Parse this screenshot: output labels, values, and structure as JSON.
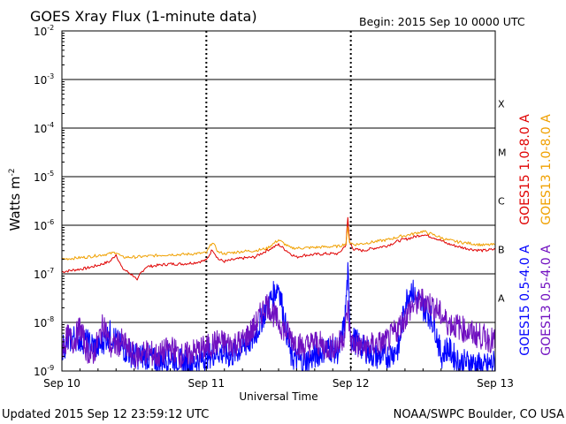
{
  "header": {
    "title": "GOES Xray Flux (1-minute data)",
    "begin": "Begin:  2015 Sep 10 0000 UTC"
  },
  "footer": {
    "updated": "Updated 2015 Sep 12 23:59:12 UTC",
    "credit": "NOAA/SWPC Boulder, CO USA"
  },
  "chart_data": {
    "type": "line",
    "title": "GOES Xray Flux (1-minute data)",
    "xlabel": "Universal Time",
    "ylabel": "Watts m",
    "ylabel_exp": "-2",
    "y_scale": "log",
    "ylim": [
      1e-09,
      0.01
    ],
    "xlim": [
      0,
      72
    ],
    "x_unit": "hours since 2015 Sep 10 0000 UTC",
    "x_ticks": [
      {
        "x": 0,
        "label": "Sep 10"
      },
      {
        "x": 24,
        "label": "Sep 11"
      },
      {
        "x": 48,
        "label": "Sep 12"
      },
      {
        "x": 72,
        "label": "Sep 13"
      }
    ],
    "y_ticks": [
      {
        "exp": -9,
        "label": "10",
        "sup": "-9"
      },
      {
        "exp": -8,
        "label": "10",
        "sup": "-8"
      },
      {
        "exp": -7,
        "label": "10",
        "sup": "-7"
      },
      {
        "exp": -6,
        "label": "10",
        "sup": "-6"
      },
      {
        "exp": -5,
        "label": "10",
        "sup": "-5"
      },
      {
        "exp": -4,
        "label": "10",
        "sup": "-4"
      },
      {
        "exp": -3,
        "label": "10",
        "sup": "-3"
      },
      {
        "exp": -2,
        "label": "10",
        "sup": "-2"
      }
    ],
    "flare_classes": [
      {
        "label": "A",
        "exp": -8
      },
      {
        "label": "B",
        "exp": -7
      },
      {
        "label": "C",
        "exp": -6
      },
      {
        "label": "M",
        "exp": -5
      },
      {
        "label": "X",
        "exp": -4
      }
    ],
    "grid": true,
    "legend_position": "right, vertical",
    "series": [
      {
        "name": "GOES15 1.0-8.0 A",
        "color": "#e00000",
        "x": [
          0,
          2,
          4,
          6,
          8,
          9,
          10,
          12,
          12.5,
          13,
          14,
          16,
          18,
          20,
          22,
          24,
          25,
          26,
          27,
          28,
          30,
          32,
          34,
          36,
          38,
          39,
          40,
          42,
          44,
          46,
          47.2,
          47.5,
          47.8,
          48.5,
          50,
          52,
          54,
          56,
          58,
          60,
          62,
          64,
          66,
          68,
          70,
          72
        ],
        "y": [
          1.1e-07,
          1.2e-07,
          1.3e-07,
          1.5e-07,
          1.8e-07,
          2.5e-07,
          1.3e-07,
          9e-08,
          7e-08,
          1e-07,
          1.4e-07,
          1.5e-07,
          1.6e-07,
          1.6e-07,
          1.7e-07,
          1.9e-07,
          3.2e-07,
          2e-07,
          1.8e-07,
          1.9e-07,
          2.1e-07,
          2.2e-07,
          3e-07,
          4e-07,
          2.6e-07,
          2.2e-07,
          2.4e-07,
          2.5e-07,
          2.6e-07,
          2.6e-07,
          4e-07,
          1.4e-06,
          4.5e-07,
          3.2e-07,
          3e-07,
          3.4e-07,
          3.8e-07,
          4.8e-07,
          5.5e-07,
          6.5e-07,
          5.5e-07,
          4.2e-07,
          3.6e-07,
          3.2e-07,
          3e-07,
          3.2e-07
        ]
      },
      {
        "name": "GOES13 1.0-8.0 A",
        "color": "#f0a000",
        "x": [
          0,
          2,
          4,
          6,
          8,
          9,
          10,
          12,
          14,
          16,
          18,
          20,
          22,
          24,
          25,
          26,
          27,
          28,
          30,
          32,
          34,
          36,
          38,
          40,
          42,
          44,
          46,
          47.2,
          47.5,
          47.8,
          48.5,
          50,
          52,
          54,
          56,
          58,
          60,
          62,
          64,
          66,
          68,
          70,
          72
        ],
        "y": [
          2e-07,
          2.1e-07,
          2.2e-07,
          2.4e-07,
          2.6e-07,
          2.8e-07,
          2.2e-07,
          2.2e-07,
          2.3e-07,
          2.4e-07,
          2.5e-07,
          2.5e-07,
          2.6e-07,
          2.7e-07,
          4.5e-07,
          2.8e-07,
          2.6e-07,
          2.7e-07,
          2.9e-07,
          3e-07,
          3.3e-07,
          5e-07,
          3.4e-07,
          3.4e-07,
          3.5e-07,
          3.6e-07,
          3.7e-07,
          4.2e-07,
          9e-07,
          4.5e-07,
          4e-07,
          4.2e-07,
          4.6e-07,
          5e-07,
          5.8e-07,
          6.5e-07,
          7.5e-07,
          6.2e-07,
          5e-07,
          4.5e-07,
          4.2e-07,
          3.9e-07,
          4e-07
        ]
      },
      {
        "name": "GOES15 0.5-4.0 A",
        "color": "#0000ff",
        "x": [
          0,
          2,
          4,
          6,
          8,
          10,
          12,
          14,
          16,
          18,
          20,
          22,
          24,
          26,
          28,
          30,
          32,
          34,
          36,
          38,
          40,
          42,
          44,
          46,
          47,
          47.5,
          48,
          50,
          52,
          54,
          56,
          57,
          58,
          59,
          60,
          61,
          62,
          63,
          64,
          66,
          68,
          70,
          72
        ],
        "y": [
          3e-09,
          5e-09,
          4e-09,
          3e-09,
          6e-09,
          3e-09,
          2e-09,
          2e-09,
          1.5e-09,
          2e-09,
          1.5e-09,
          1.5e-09,
          2e-09,
          2.5e-09,
          2e-09,
          3e-09,
          5e-09,
          2e-08,
          6e-08,
          2e-09,
          1.5e-09,
          2e-09,
          3e-09,
          2.5e-09,
          1e-08,
          1e-07,
          5e-09,
          3e-09,
          2e-09,
          2e-09,
          3e-09,
          2.5e-08,
          5e-08,
          3e-08,
          2e-08,
          1.5e-08,
          8e-09,
          2e-09,
          3e-09,
          1.5e-09,
          1.5e-09,
          1.2e-09,
          1.5e-09
        ]
      },
      {
        "name": "GOES13 0.5-4.0 A",
        "color": "#7010c0",
        "x": [
          0,
          1,
          2,
          3,
          4,
          5,
          6,
          7,
          8,
          10,
          12,
          14,
          16,
          18,
          20,
          22,
          24,
          26,
          28,
          30,
          32,
          34,
          36,
          38,
          40,
          42,
          44,
          46,
          47,
          47.5,
          48,
          50,
          52,
          54,
          56,
          58,
          60,
          62,
          64,
          66,
          68,
          70,
          72
        ],
        "y": [
          3e-09,
          5e-09,
          4e-09,
          8e-09,
          3e-09,
          2e-09,
          4e-09,
          1e-08,
          3e-09,
          4e-09,
          2e-09,
          2.5e-09,
          2e-09,
          3e-09,
          2e-09,
          2.5e-09,
          3e-09,
          4e-09,
          3.5e-09,
          4e-09,
          8e-09,
          2.5e-08,
          1e-08,
          5e-09,
          3e-09,
          4e-09,
          3e-09,
          3.5e-09,
          6e-09,
          2e-08,
          4e-09,
          3e-09,
          3.5e-09,
          4e-09,
          8e-09,
          2e-08,
          3e-08,
          2e-08,
          1e-08,
          8e-09,
          6e-09,
          5e-09,
          4e-09
        ]
      }
    ]
  }
}
